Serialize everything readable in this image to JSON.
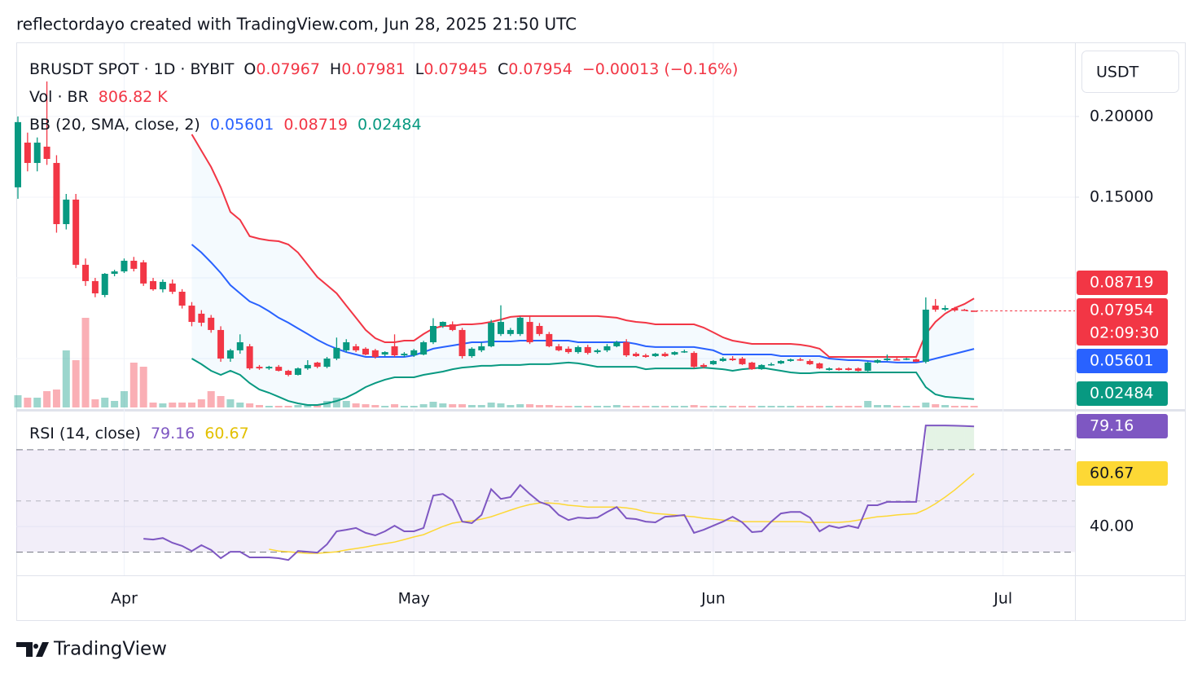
{
  "header": {
    "attribution": "reflectordayo created with TradingView.com, Jun 28, 2025 21:50 UTC"
  },
  "footer": {
    "logo": "TradingView"
  },
  "chart_data": {
    "type": "candlestick",
    "symbol": "BRUSDT SPOT · 1D · BYBIT",
    "ohlc_letters": [
      "O",
      "H",
      "L",
      "C"
    ],
    "change": {
      "value": -0.00013,
      "label": "−0.00013"
    },
    "change_pct": {
      "value": -0.16,
      "label": "(−0.16%)"
    },
    "currency": "USDT",
    "countdown": "02:09:30",
    "up_color": "#089981",
    "down_color": "#f23645",
    "x_labels": [
      "Apr",
      "May",
      "Jun",
      "Jul"
    ],
    "ylim": [
      0.0197,
      0.2444
    ],
    "yticks": [
      {
        "value": 0.2,
        "label": "0.20000"
      },
      {
        "value": 0.15,
        "label": "0.15000"
      }
    ],
    "ygrid": [
      0.05,
      0.1,
      0.15,
      0.2
    ],
    "candles": [
      [
        0.1561,
        0.2,
        0.149,
        0.1965
      ],
      [
        0.1838,
        0.19,
        0.166,
        0.1712
      ],
      [
        0.1712,
        0.187,
        0.166,
        0.1838
      ],
      [
        0.1813,
        0.2217,
        0.17,
        0.1737
      ],
      [
        0.1712,
        0.176,
        0.128,
        0.1333
      ],
      [
        0.1333,
        0.152,
        0.13,
        0.1485
      ],
      [
        0.1485,
        0.152,
        0.106,
        0.1081
      ],
      [
        0.1081,
        0.112,
        0.095,
        0.098
      ],
      [
        0.098,
        0.1,
        0.088,
        0.0904
      ],
      [
        0.0894,
        0.103,
        0.088,
        0.1025
      ],
      [
        0.1025,
        0.105,
        0.101,
        0.104
      ],
      [
        0.104,
        0.112,
        0.103,
        0.1106
      ],
      [
        0.1106,
        0.113,
        0.104,
        0.1056
      ],
      [
        0.1096,
        0.111,
        0.095,
        0.0965
      ],
      [
        0.098,
        0.1,
        0.092,
        0.0929
      ],
      [
        0.0929,
        0.099,
        0.091,
        0.0975
      ],
      [
        0.0965,
        0.099,
        0.09,
        0.0914
      ],
      [
        0.0914,
        0.093,
        0.081,
        0.0828
      ],
      [
        0.0828,
        0.085,
        0.07,
        0.0727
      ],
      [
        0.0778,
        0.08,
        0.07,
        0.0722
      ],
      [
        0.0753,
        0.077,
        0.066,
        0.0677
      ],
      [
        0.0677,
        0.07,
        0.048,
        0.05
      ],
      [
        0.05,
        0.056,
        0.048,
        0.0551
      ],
      [
        0.0551,
        0.065,
        0.053,
        0.0601
      ],
      [
        0.0576,
        0.059,
        0.043,
        0.0439
      ],
      [
        0.0449,
        0.046,
        0.043,
        0.0439
      ],
      [
        0.0439,
        0.0455,
        0.043,
        0.0449
      ],
      [
        0.0449,
        0.046,
        0.042,
        0.0424
      ],
      [
        0.0424,
        0.043,
        0.039,
        0.0399
      ],
      [
        0.0399,
        0.0445,
        0.0395,
        0.0439
      ],
      [
        0.0439,
        0.049,
        0.043,
        0.046
      ],
      [
        0.0475,
        0.048,
        0.044,
        0.0449
      ],
      [
        0.0449,
        0.051,
        0.044,
        0.05
      ],
      [
        0.05,
        0.063,
        0.049,
        0.0566
      ],
      [
        0.0551,
        0.062,
        0.054,
        0.0601
      ],
      [
        0.0576,
        0.059,
        0.054,
        0.0551
      ],
      [
        0.0561,
        0.057,
        0.052,
        0.0525
      ],
      [
        0.0551,
        0.056,
        0.05,
        0.051
      ],
      [
        0.0525,
        0.0545,
        0.0515,
        0.054
      ],
      [
        0.0576,
        0.065,
        0.051,
        0.052
      ],
      [
        0.052,
        0.054,
        0.051,
        0.053
      ],
      [
        0.052,
        0.056,
        0.051,
        0.0551
      ],
      [
        0.0525,
        0.061,
        0.052,
        0.0601
      ],
      [
        0.0601,
        0.075,
        0.059,
        0.0702
      ],
      [
        0.0702,
        0.073,
        0.069,
        0.0727
      ],
      [
        0.0712,
        0.073,
        0.067,
        0.0677
      ],
      [
        0.0677,
        0.069,
        0.05,
        0.0515
      ],
      [
        0.0515,
        0.057,
        0.0505,
        0.0561
      ],
      [
        0.0551,
        0.06,
        0.054,
        0.0576
      ],
      [
        0.0576,
        0.074,
        0.057,
        0.0722
      ],
      [
        0.0652,
        0.083,
        0.064,
        0.0727
      ],
      [
        0.0652,
        0.069,
        0.064,
        0.0677
      ],
      [
        0.0652,
        0.076,
        0.064,
        0.0753
      ],
      [
        0.0727,
        0.076,
        0.059,
        0.0601
      ],
      [
        0.0702,
        0.072,
        0.064,
        0.0652
      ],
      [
        0.0652,
        0.0665,
        0.057,
        0.0576
      ],
      [
        0.0576,
        0.059,
        0.0545,
        0.0551
      ],
      [
        0.0561,
        0.0575,
        0.053,
        0.054
      ],
      [
        0.054,
        0.058,
        0.053,
        0.0571
      ],
      [
        0.0571,
        0.0585,
        0.0525,
        0.0535
      ],
      [
        0.054,
        0.056,
        0.053,
        0.0551
      ],
      [
        0.0551,
        0.059,
        0.054,
        0.0576
      ],
      [
        0.0576,
        0.061,
        0.057,
        0.0601
      ],
      [
        0.0601,
        0.062,
        0.051,
        0.052
      ],
      [
        0.053,
        0.054,
        0.051,
        0.0515
      ],
      [
        0.052,
        0.053,
        0.0505,
        0.051
      ],
      [
        0.0515,
        0.0535,
        0.051,
        0.053
      ],
      [
        0.053,
        0.054,
        0.051,
        0.0515
      ],
      [
        0.0525,
        0.0545,
        0.052,
        0.054
      ],
      [
        0.054,
        0.0555,
        0.0535,
        0.0545
      ],
      [
        0.0535,
        0.0545,
        0.044,
        0.0449
      ],
      [
        0.046,
        0.047,
        0.044,
        0.0449
      ],
      [
        0.0465,
        0.049,
        0.046,
        0.0485
      ],
      [
        0.0485,
        0.051,
        0.048,
        0.05
      ],
      [
        0.05,
        0.0515,
        0.0485,
        0.049
      ],
      [
        0.05,
        0.051,
        0.046,
        0.0465
      ],
      [
        0.0475,
        0.048,
        0.043,
        0.0434
      ],
      [
        0.0434,
        0.0465,
        0.043,
        0.046
      ],
      [
        0.046,
        0.0475,
        0.0455,
        0.0465
      ],
      [
        0.047,
        0.049,
        0.0465,
        0.0485
      ],
      [
        0.0485,
        0.05,
        0.048,
        0.0495
      ],
      [
        0.0495,
        0.0505,
        0.0485,
        0.049
      ],
      [
        0.0485,
        0.0495,
        0.046,
        0.0465
      ],
      [
        0.047,
        0.0475,
        0.0435,
        0.0439
      ],
      [
        0.0429,
        0.0445,
        0.0425,
        0.0439
      ],
      [
        0.0439,
        0.0445,
        0.0425,
        0.0429
      ],
      [
        0.0439,
        0.0445,
        0.0425,
        0.0429
      ],
      [
        0.0439,
        0.0445,
        0.042,
        0.0424
      ],
      [
        0.0424,
        0.048,
        0.042,
        0.0475
      ],
      [
        0.0475,
        0.0495,
        0.047,
        0.049
      ],
      [
        0.049,
        0.0525,
        0.0485,
        0.05
      ],
      [
        0.0495,
        0.0505,
        0.0488,
        0.049
      ],
      [
        0.0495,
        0.0505,
        0.049,
        0.05
      ],
      [
        0.0495,
        0.05,
        0.0478,
        0.048
      ],
      [
        0.048,
        0.0879,
        0.047,
        0.0803
      ],
      [
        0.0828,
        0.0869,
        0.079,
        0.0803
      ],
      [
        0.0803,
        0.083,
        0.0795,
        0.0813
      ],
      [
        0.0813,
        0.082,
        0.079,
        0.0798
      ],
      [
        0.0803,
        0.0808,
        0.0795,
        0.0797
      ],
      [
        0.07967,
        0.07981,
        0.07945,
        0.07954
      ]
    ],
    "volume_title": "Vol · BR",
    "volume_last_label": "806.82 K",
    "volumes": [
      6000000,
      4800000,
      4800000,
      8000000,
      8800000,
      28000000,
      23200000,
      44000000,
      4000000,
      4800000,
      3200000,
      8000000,
      22000000,
      20000000,
      2400000,
      2000000,
      2400000,
      2400000,
      2400000,
      4000000,
      8000000,
      5600000,
      4000000,
      2400000,
      2000000,
      1200000,
      800000,
      800000,
      800000,
      1200000,
      1600000,
      1200000,
      3200000,
      4800000,
      3200000,
      2000000,
      1600000,
      1200000,
      800000,
      1600000,
      800000,
      800000,
      1600000,
      2800000,
      2000000,
      1600000,
      1600000,
      1200000,
      1200000,
      2400000,
      2000000,
      1200000,
      1600000,
      1600000,
      1200000,
      1200000,
      800000,
      800000,
      800000,
      800000,
      800000,
      800000,
      1200000,
      800000,
      800000,
      800000,
      800000,
      800000,
      800000,
      800000,
      1200000,
      800000,
      800000,
      800000,
      800000,
      800000,
      800000,
      800000,
      800000,
      800000,
      800000,
      800000,
      800000,
      800000,
      800000,
      800000,
      800000,
      800000,
      3200000,
      1200000,
      1200000,
      800000,
      800000,
      800000,
      2400000,
      1600000,
      1200000,
      800000,
      800000,
      806820
    ],
    "bb_title": "BB (20, SMA, close, 2)",
    "bb": {
      "basis_color": "#2962ff",
      "upper_color": "#f23645",
      "lower_color": "#089981",
      "upper": [
        null,
        null,
        null,
        null,
        null,
        null,
        null,
        null,
        null,
        null,
        null,
        null,
        null,
        null,
        null,
        null,
        null,
        null,
        0.1889,
        0.1788,
        0.1687,
        0.1561,
        0.1409,
        0.1359,
        0.1258,
        0.1242,
        0.1232,
        0.1227,
        0.1207,
        0.1157,
        0.1081,
        0.1005,
        0.0955,
        0.0904,
        0.0828,
        0.0753,
        0.0677,
        0.0626,
        0.0601,
        0.0601,
        0.0611,
        0.0611,
        0.0652,
        0.0687,
        0.0702,
        0.0702,
        0.0712,
        0.0712,
        0.0717,
        0.0727,
        0.0742,
        0.0758,
        0.0763,
        0.0763,
        0.0763,
        0.0763,
        0.0763,
        0.0763,
        0.0763,
        0.0763,
        0.0763,
        0.0758,
        0.0753,
        0.0737,
        0.0727,
        0.0722,
        0.0712,
        0.0712,
        0.0712,
        0.0712,
        0.0712,
        0.0692,
        0.0662,
        0.0631,
        0.0611,
        0.0601,
        0.0591,
        0.0591,
        0.0591,
        0.0591,
        0.0591,
        0.0586,
        0.0576,
        0.0561,
        0.051,
        0.051,
        0.051,
        0.051,
        0.051,
        0.051,
        0.051,
        0.051,
        0.051,
        0.051,
        0.0652,
        0.0727,
        0.0778,
        0.0813,
        0.0838,
        0.08719
      ],
      "basis": [
        null,
        null,
        null,
        null,
        null,
        null,
        null,
        null,
        null,
        null,
        null,
        null,
        null,
        null,
        null,
        null,
        null,
        null,
        0.1207,
        0.1157,
        0.1096,
        0.103,
        0.0955,
        0.0904,
        0.0854,
        0.0828,
        0.0793,
        0.0753,
        0.0722,
        0.0687,
        0.0652,
        0.0616,
        0.0586,
        0.0561,
        0.054,
        0.0525,
        0.051,
        0.051,
        0.051,
        0.051,
        0.051,
        0.052,
        0.054,
        0.0561,
        0.0571,
        0.0581,
        0.0591,
        0.0601,
        0.0601,
        0.0606,
        0.0606,
        0.0606,
        0.0611,
        0.0611,
        0.0611,
        0.0611,
        0.0611,
        0.0611,
        0.0601,
        0.0601,
        0.0601,
        0.0601,
        0.0601,
        0.0601,
        0.0591,
        0.0576,
        0.0571,
        0.0571,
        0.0571,
        0.0571,
        0.0571,
        0.0561,
        0.0551,
        0.0525,
        0.0525,
        0.0525,
        0.0525,
        0.0525,
        0.0525,
        0.0515,
        0.0515,
        0.0515,
        0.0515,
        0.0515,
        0.05,
        0.0495,
        0.049,
        0.049,
        0.0485,
        0.048,
        0.048,
        0.0475,
        0.0475,
        0.0475,
        0.0485,
        0.05,
        0.0515,
        0.053,
        0.0545,
        0.05601
      ],
      "lower": [
        null,
        null,
        null,
        null,
        null,
        null,
        null,
        null,
        null,
        null,
        null,
        null,
        null,
        null,
        null,
        null,
        null,
        null,
        0.05,
        0.0465,
        0.0424,
        0.0399,
        0.0424,
        0.0399,
        0.0348,
        0.0308,
        0.0288,
        0.0263,
        0.0237,
        0.0222,
        0.0212,
        0.0212,
        0.0222,
        0.0237,
        0.0258,
        0.0288,
        0.0323,
        0.0348,
        0.0369,
        0.0384,
        0.0384,
        0.0384,
        0.0399,
        0.0409,
        0.0419,
        0.0434,
        0.0444,
        0.0449,
        0.0455,
        0.0455,
        0.046,
        0.046,
        0.046,
        0.0465,
        0.0465,
        0.0465,
        0.047,
        0.0475,
        0.047,
        0.046,
        0.0449,
        0.0449,
        0.0449,
        0.0449,
        0.0449,
        0.0434,
        0.0439,
        0.0439,
        0.0439,
        0.0439,
        0.0439,
        0.0444,
        0.0439,
        0.0434,
        0.0424,
        0.0434,
        0.0439,
        0.0444,
        0.0434,
        0.0424,
        0.0414,
        0.0409,
        0.0409,
        0.0414,
        0.0414,
        0.0414,
        0.0414,
        0.0414,
        0.0414,
        0.0414,
        0.0414,
        0.0414,
        0.0414,
        0.0414,
        0.0323,
        0.0278,
        0.0263,
        0.0258,
        0.0253,
        0.02484
      ]
    },
    "rsi_title": "RSI (14, close)",
    "rsi_color": "#7e57c2",
    "rsi_ma_color": "#fdd835",
    "rsi_ylim": [
      20.9,
      84
    ],
    "rsi_yticks": [
      {
        "value": 40,
        "label": "40.00"
      }
    ],
    "rsi_bands": {
      "upper": 70,
      "middle": 50,
      "lower": 30
    },
    "rsi": [
      null,
      null,
      null,
      null,
      null,
      null,
      null,
      null,
      null,
      null,
      null,
      null,
      null,
      35.2,
      34.9,
      35.5,
      33.6,
      32.4,
      30.4,
      32.7,
      30.8,
      27.6,
      30.1,
      30.1,
      27.9,
      27.9,
      27.9,
      27.6,
      26.9,
      30.4,
      30.1,
      29.8,
      33.0,
      38.1,
      38.7,
      39.4,
      37.5,
      36.5,
      38.1,
      40.3,
      38.1,
      38.1,
      39.4,
      52.1,
      52.7,
      50.2,
      41.9,
      41.3,
      44.5,
      54.6,
      50.8,
      51.5,
      56.2,
      52.7,
      49.6,
      48.3,
      44.5,
      42.5,
      43.5,
      43.2,
      43.5,
      45.7,
      47.6,
      43.2,
      42.9,
      41.9,
      41.6,
      43.8,
      44.1,
      44.5,
      37.5,
      38.7,
      40.3,
      41.9,
      43.8,
      41.6,
      37.8,
      38.1,
      41.9,
      45.1,
      45.7,
      45.7,
      43.5,
      38.1,
      40.3,
      39.4,
      40.3,
      39.4,
      48.3,
      48.3,
      49.6,
      49.6,
      49.6,
      49.6,
      79.5,
      79.5,
      79.5,
      79.4,
      79.3,
      79.16
    ],
    "rsi_ma": [
      null,
      null,
      null,
      null,
      null,
      null,
      null,
      null,
      null,
      null,
      null,
      null,
      null,
      null,
      null,
      null,
      null,
      null,
      null,
      null,
      null,
      null,
      null,
      null,
      null,
      null,
      31.1,
      30.4,
      30.1,
      29.8,
      29.5,
      29.5,
      29.8,
      30.1,
      30.8,
      31.4,
      32.0,
      32.7,
      33.3,
      33.9,
      34.9,
      35.9,
      36.8,
      38.4,
      40.0,
      41.3,
      41.9,
      42.2,
      42.9,
      43.8,
      45.1,
      46.4,
      47.6,
      48.6,
      49.2,
      49.2,
      48.9,
      48.3,
      48.0,
      47.6,
      47.6,
      47.6,
      47.6,
      47.3,
      46.7,
      45.7,
      45.1,
      44.8,
      44.5,
      44.1,
      43.8,
      43.2,
      42.9,
      42.5,
      42.2,
      41.9,
      41.9,
      41.9,
      41.9,
      41.9,
      41.9,
      41.9,
      41.6,
      41.6,
      41.6,
      41.6,
      41.9,
      42.5,
      43.2,
      43.8,
      44.1,
      44.5,
      44.8,
      45.1,
      46.7,
      48.9,
      51.5,
      54.3,
      57.5,
      60.67
    ]
  }
}
